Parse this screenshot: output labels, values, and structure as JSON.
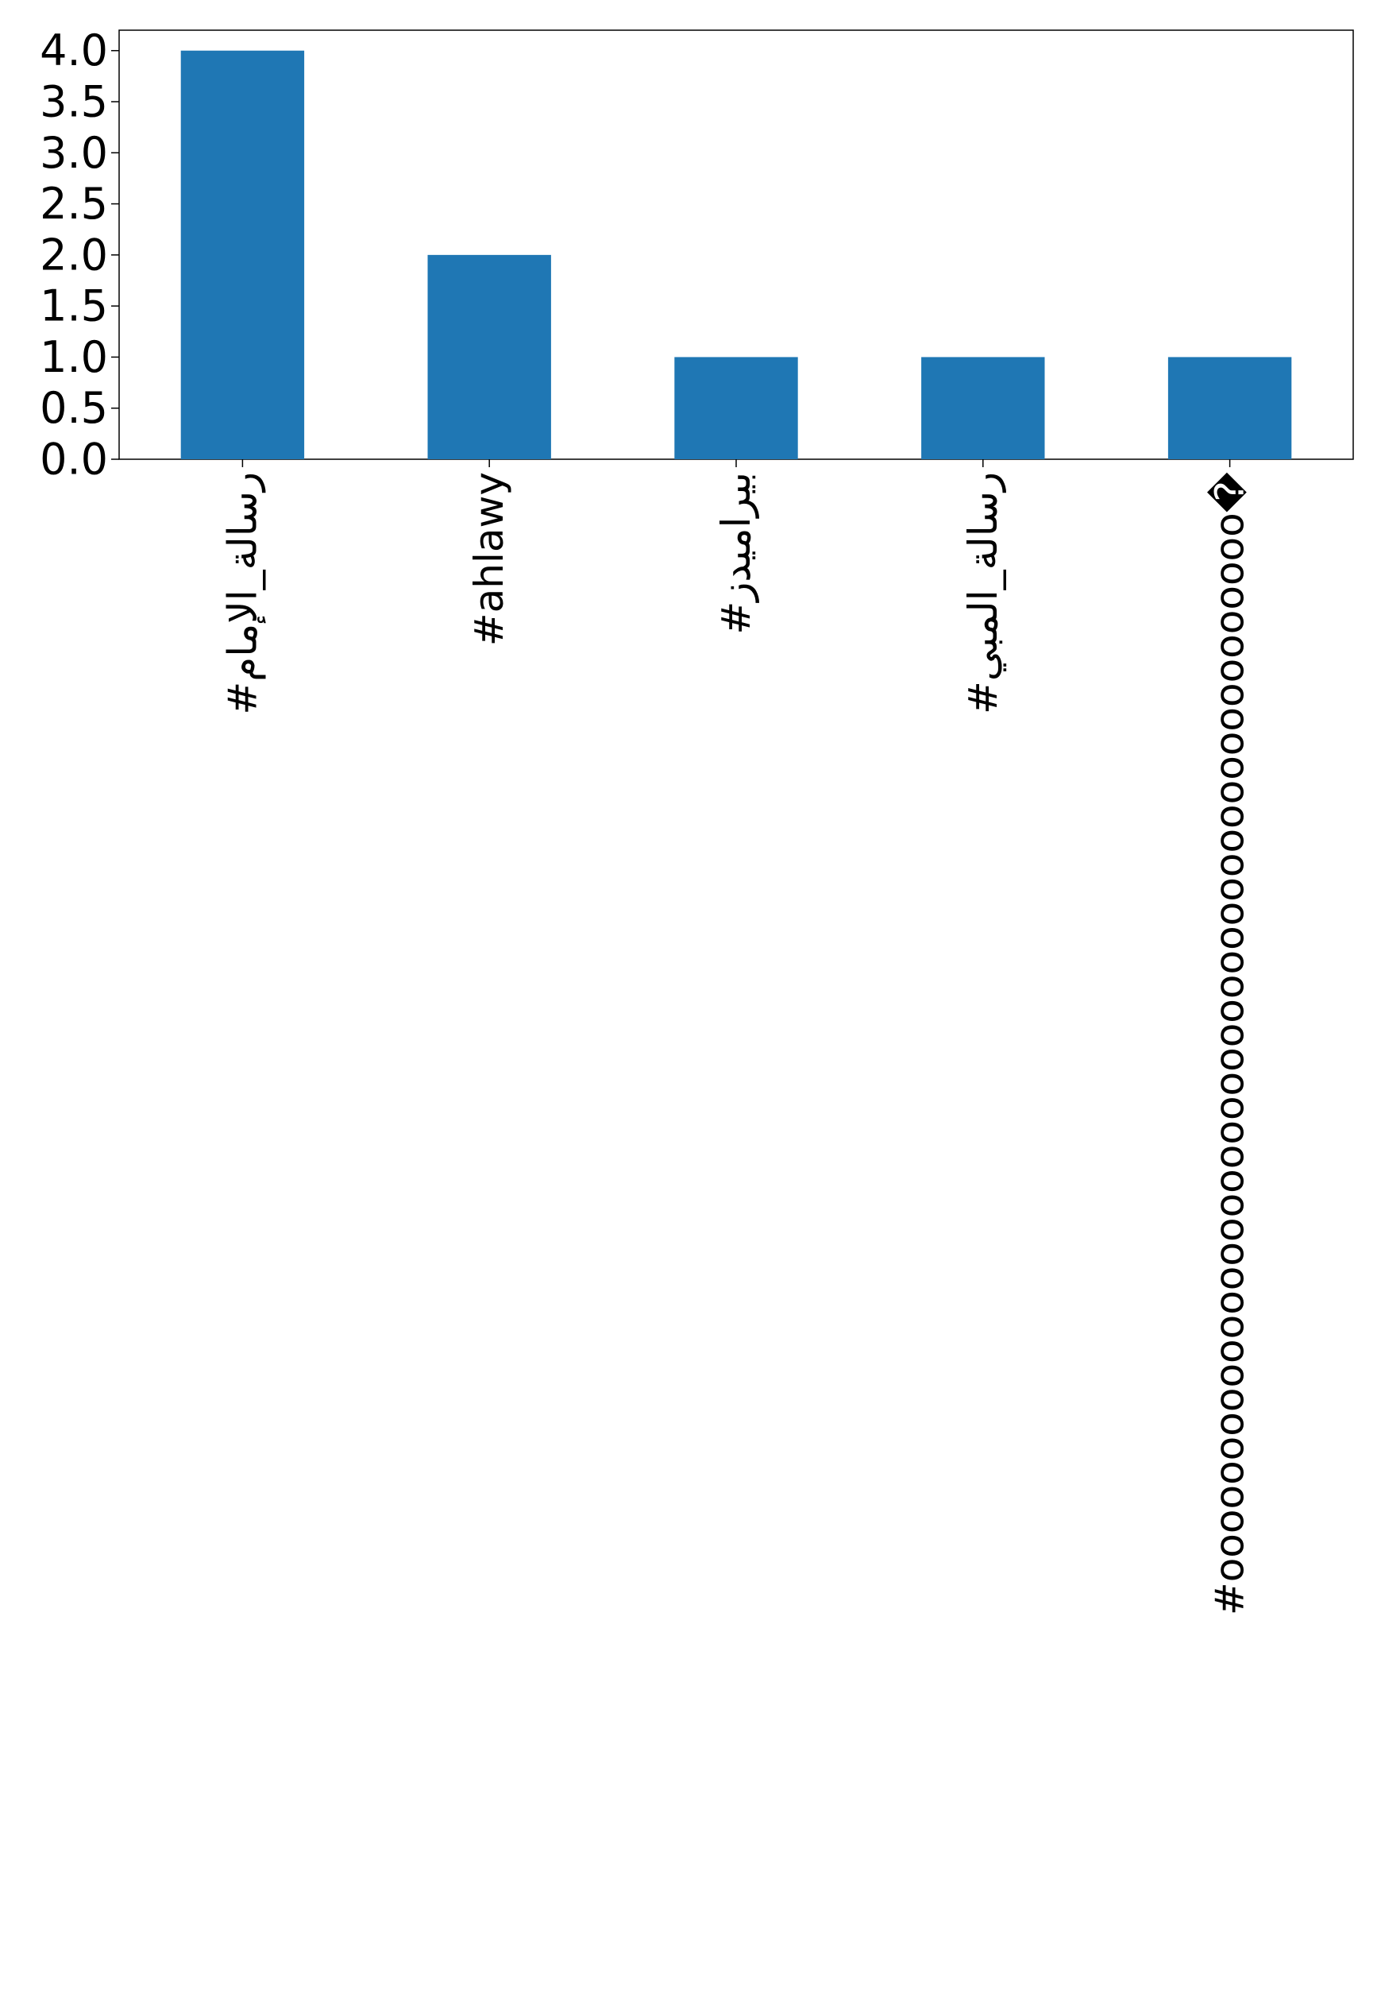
{
  "chart_data": {
    "type": "bar",
    "title": "",
    "xlabel": "",
    "ylabel": "",
    "categories": [
      "#رسالة_الإمام",
      "#ahlawy",
      "#بيراميدز",
      "#رسالة_المبي",
      "#oooooooooooooooooooooooooooooooooooooooooooo�"
    ],
    "values": [
      4,
      2,
      1,
      1,
      1
    ],
    "ylim": [
      0,
      4.2
    ],
    "yticks": [
      0.0,
      0.5,
      1.0,
      1.5,
      2.0,
      2.5,
      3.0,
      3.5,
      4.0
    ],
    "ytick_labels": [
      "0.0",
      "0.5",
      "1.0",
      "1.5",
      "2.0",
      "2.5",
      "3.0",
      "3.5",
      "4.0"
    ],
    "bar_color": "#1f77b4",
    "grid": false,
    "legend": "none"
  }
}
